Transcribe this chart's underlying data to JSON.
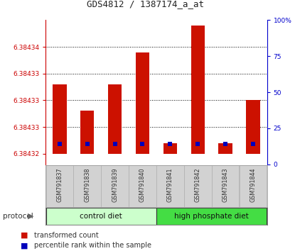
{
  "title": "GDS4812 / 1387174_a_at",
  "samples": [
    "GSM791837",
    "GSM791838",
    "GSM791839",
    "GSM791840",
    "GSM791841",
    "GSM791842",
    "GSM791843",
    "GSM791844"
  ],
  "y_min": 6.384318,
  "y_max": 6.384345,
  "ytick_vals": [
    6.38432,
    6.384325,
    6.38433,
    6.384335,
    6.38434
  ],
  "ytick_labels": [
    "6.38432",
    "6.38433",
    "6.38433",
    "6.38433",
    "6.38434"
  ],
  "red_bar_top": [
    6.384333,
    6.384328,
    6.384333,
    6.384339,
    6.384322,
    6.384344,
    6.384322,
    6.38433
  ],
  "red_bar_bottom": [
    6.38432,
    6.38432,
    6.38432,
    6.38432,
    6.38432,
    6.38432,
    6.38432,
    6.38432
  ],
  "blue_pct": [
    14,
    14,
    14,
    14,
    14,
    14,
    14,
    14
  ],
  "groups": [
    {
      "label": "control diet",
      "start": 0,
      "end": 3,
      "color": "#ccffcc"
    },
    {
      "label": "high phosphate diet",
      "start": 4,
      "end": 7,
      "color": "#44dd44"
    }
  ],
  "bar_color": "#cc1100",
  "blue_color": "#0000bb",
  "bar_width": 0.5,
  "left_axis_color": "#cc0000",
  "right_axis_color": "#0000cc",
  "label_bg": "#cccccc",
  "label_box_color": "#bbbbbb",
  "protocol_label": "protocol",
  "legend_red": "transformed count",
  "legend_blue": "percentile rank within the sample"
}
